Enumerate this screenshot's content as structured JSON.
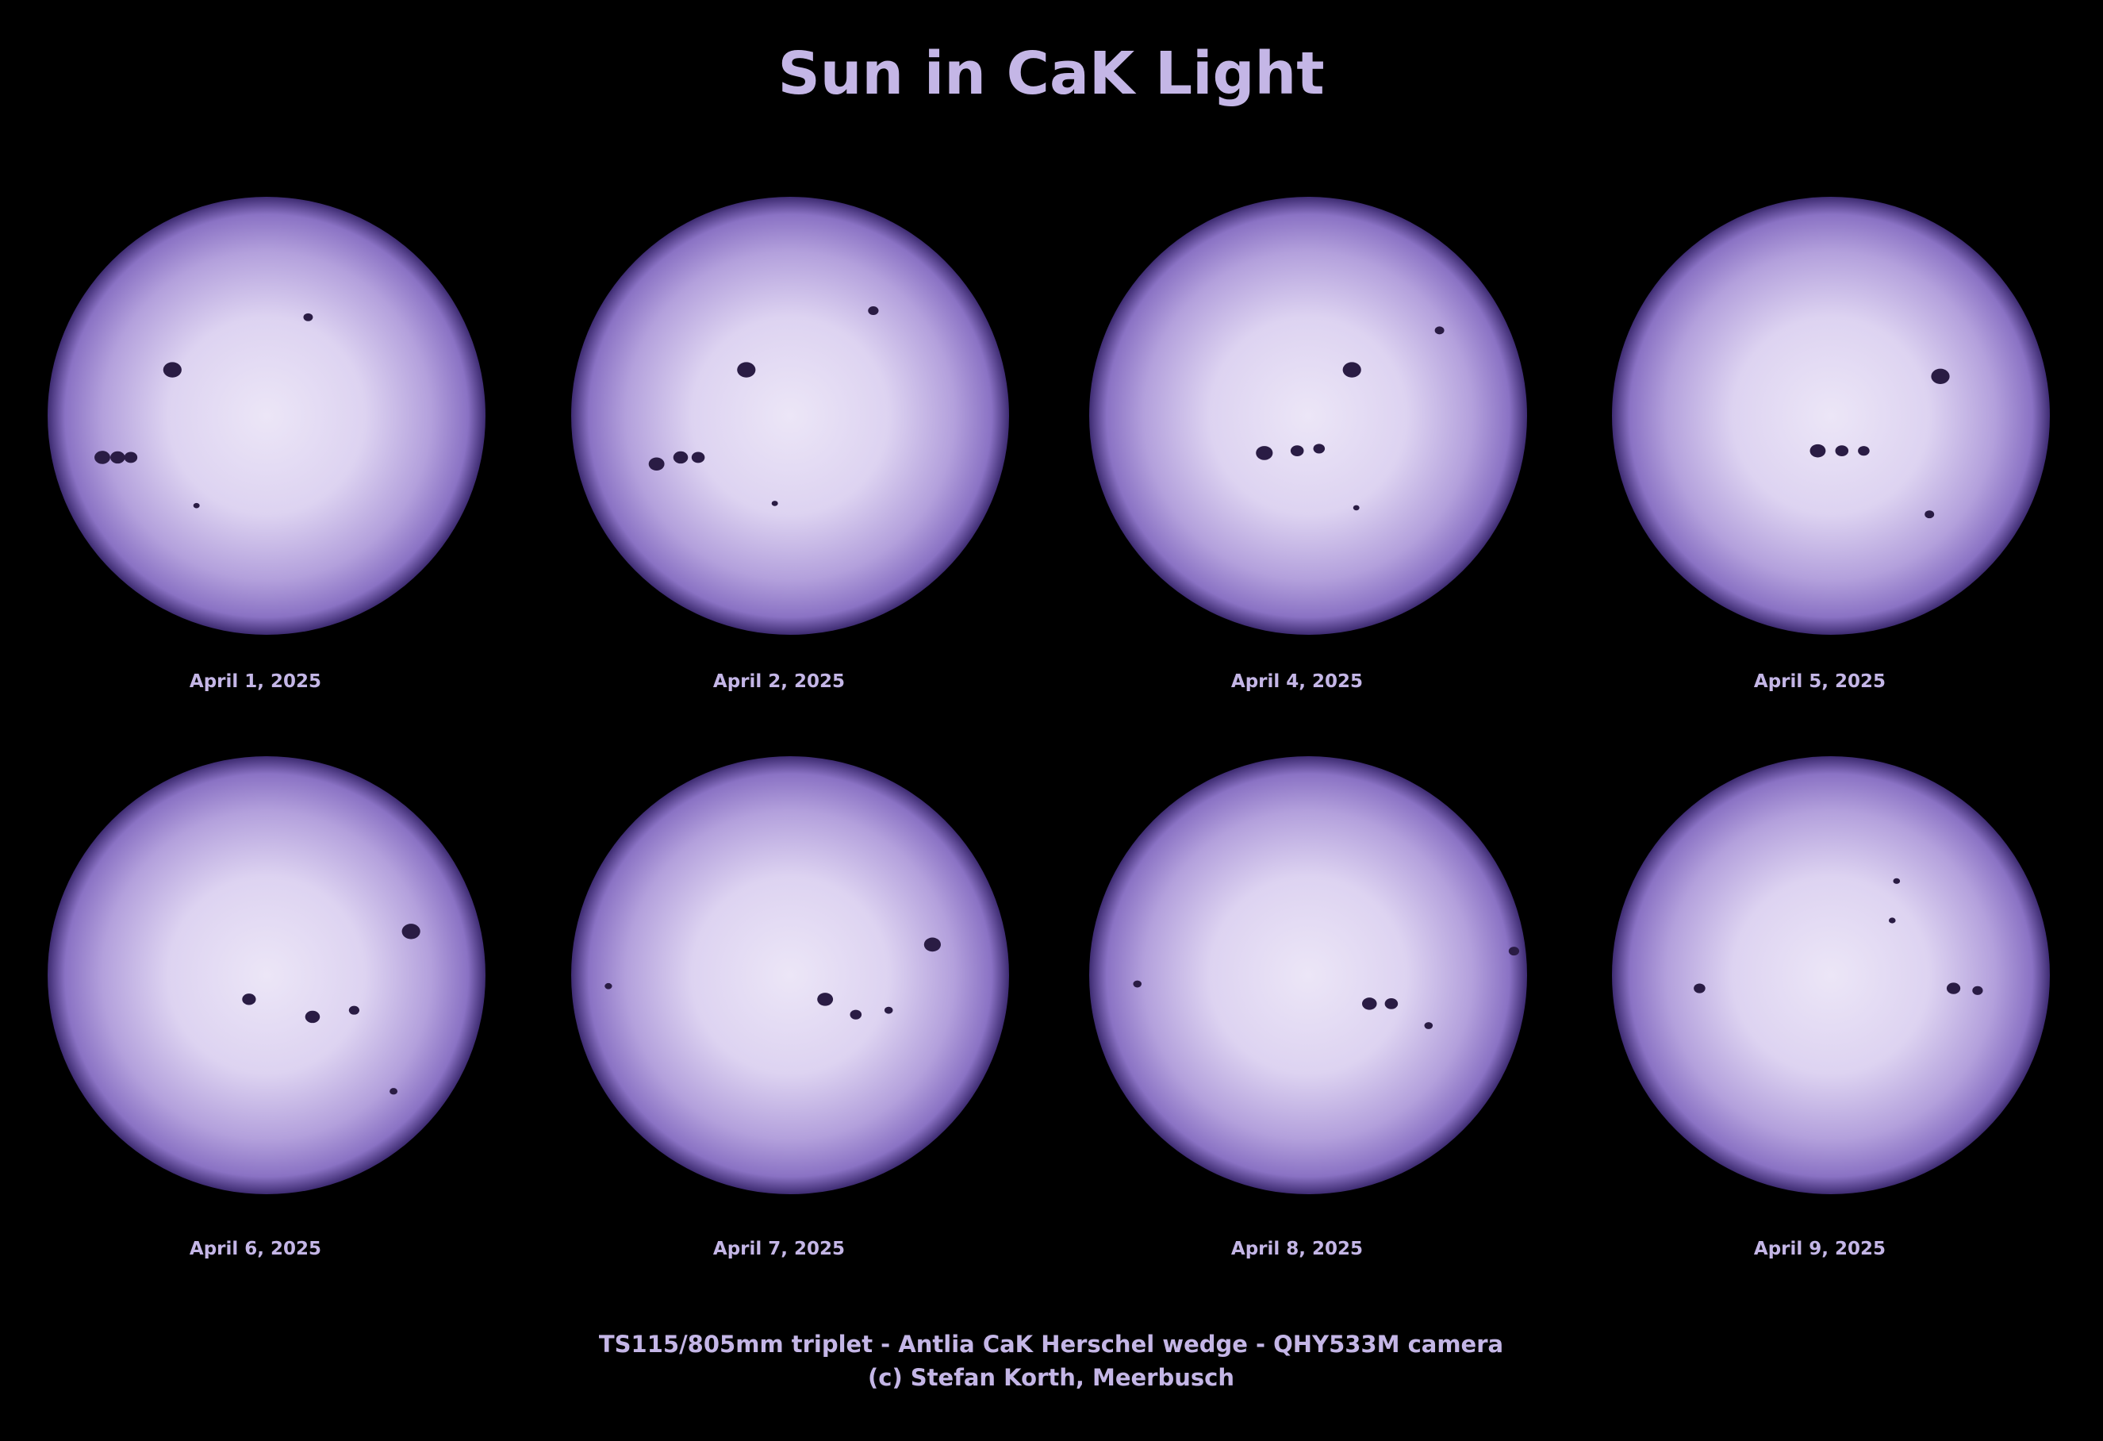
{
  "title": "Sun in CaK Light",
  "panels": [
    {
      "label": "April 1, 2025"
    },
    {
      "label": "April 2, 2025"
    },
    {
      "label": "April 4, 2025"
    },
    {
      "label": "April 5, 2025"
    },
    {
      "label": "April 6, 2025"
    },
    {
      "label": "April 7, 2025"
    },
    {
      "label": "April 8, 2025"
    },
    {
      "label": "April 9, 2025"
    }
  ],
  "footer": {
    "line1": "TS115/805mm triplet - Antlia CaK Herschel wedge - QHY533M camera",
    "line2": "(c) Stefan Korth, Meerbusch"
  }
}
